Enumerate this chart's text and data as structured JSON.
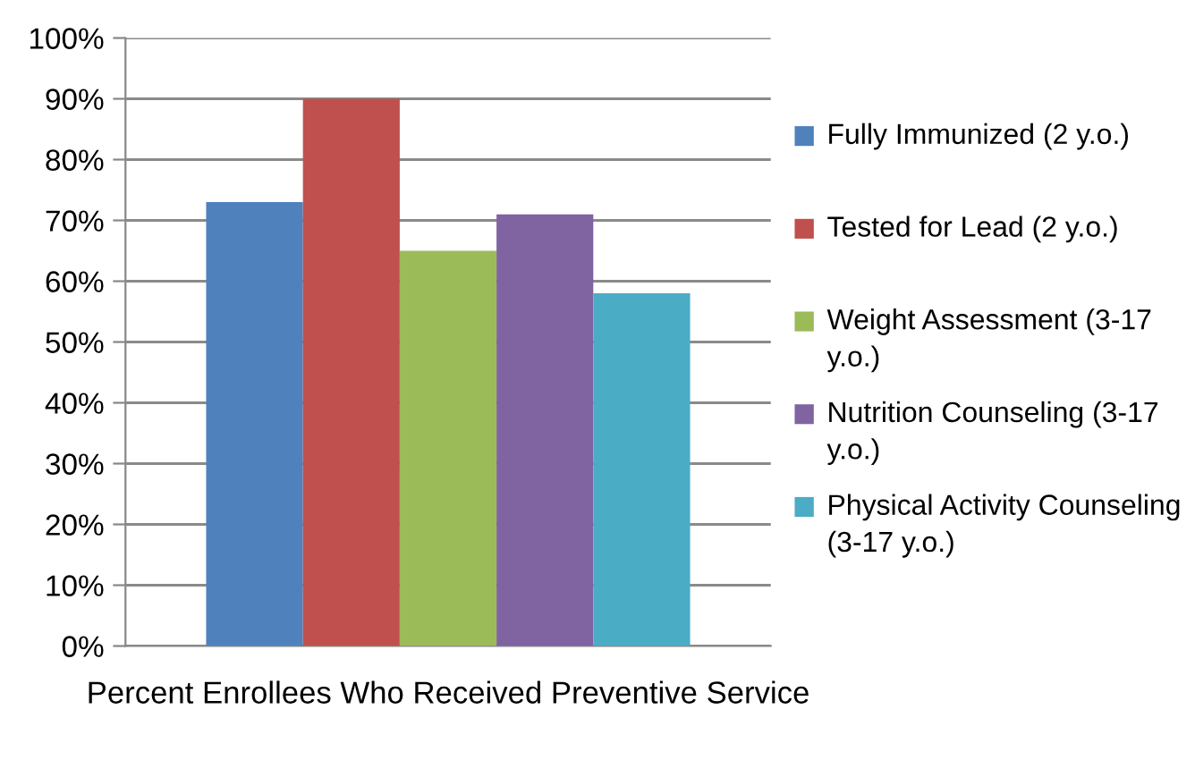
{
  "chart_data": {
    "type": "bar",
    "categories": [
      "Percent Enrollees Who Received Preventive Service"
    ],
    "series": [
      {
        "name": "Fully Immunized (2 y.o.)",
        "color": "#4f81bd",
        "values": [
          73
        ]
      },
      {
        "name": "Tested for Lead (2 y.o.)",
        "color": "#c0504d",
        "values": [
          90
        ]
      },
      {
        "name": "Weight Assessment (3-17 y.o.)",
        "color": "#9bbb59",
        "values": [
          65
        ]
      },
      {
        "name": "Nutrition Counseling (3-17 y.o.)",
        "color": "#8064a2",
        "values": [
          71
        ]
      },
      {
        "name": "Physical Activity Counseling (3-17 y.o.)",
        "color": "#4bacc6",
        "values": [
          58
        ]
      }
    ],
    "ylim": [
      0,
      100
    ],
    "yticks": [
      {
        "value": 0,
        "label": "0%"
      },
      {
        "value": 10,
        "label": "10%"
      },
      {
        "value": 20,
        "label": "20%"
      },
      {
        "value": 30,
        "label": "30%"
      },
      {
        "value": 40,
        "label": "40%"
      },
      {
        "value": 50,
        "label": "50%"
      },
      {
        "value": 60,
        "label": "60%"
      },
      {
        "value": 70,
        "label": "70%"
      },
      {
        "value": 80,
        "label": "80%"
      },
      {
        "value": 90,
        "label": "90%"
      },
      {
        "value": 100,
        "label": "100%"
      }
    ],
    "grid": "y",
    "legend": "right"
  }
}
